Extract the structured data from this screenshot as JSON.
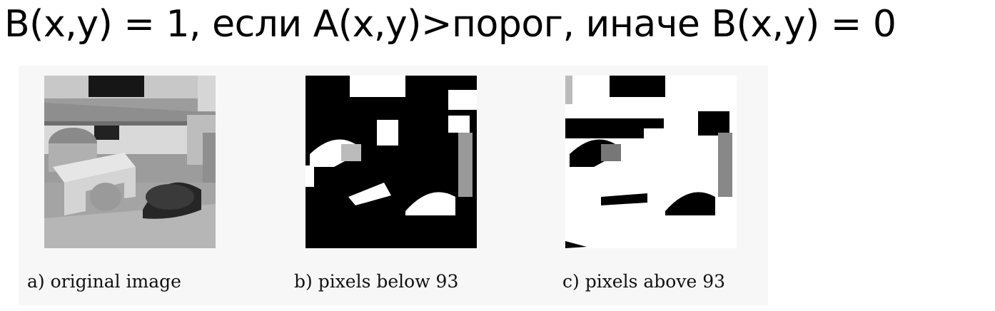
{
  "formula": "B(x,y) = 1, если A(x,y)>порог, иначе B(x,y) = 0",
  "figures": [
    {
      "caption": "a) original image"
    },
    {
      "caption": "b) pixels below 93"
    },
    {
      "caption": "c) pixels above 93"
    }
  ]
}
